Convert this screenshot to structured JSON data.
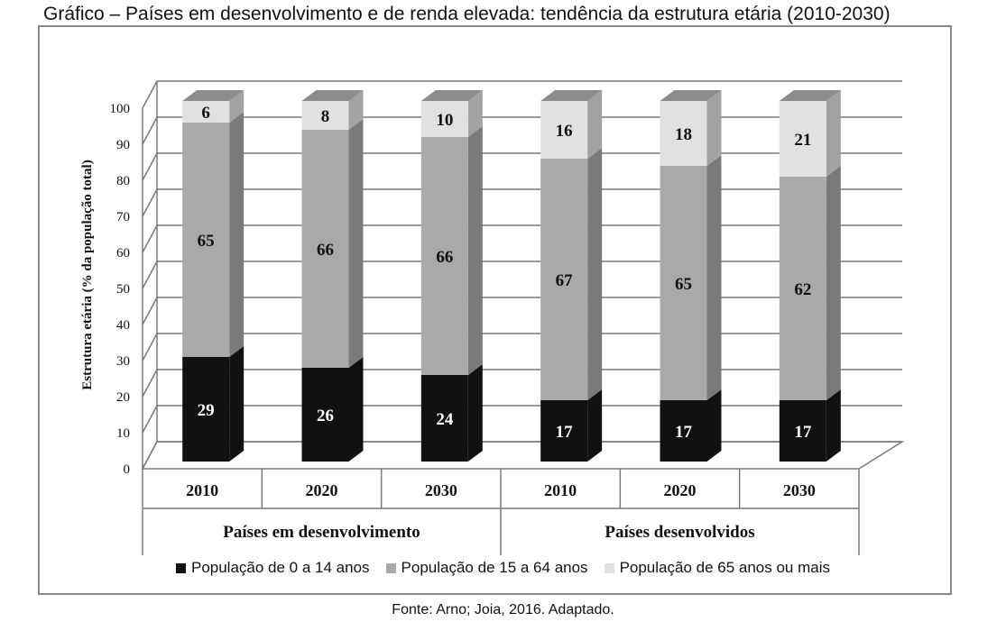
{
  "title": "Gráfico – Países em desenvolvimento e de renda elevada: tendência da estrutura etária (2010-2030)",
  "source": "Fonte: Arno; Joia, 2016. Adaptado.",
  "chart_data": {
    "type": "bar",
    "stacked": true,
    "three_d": true,
    "ylabel": "Estrutura etária (% da população total)",
    "ylim": [
      0,
      100
    ],
    "yticks": [
      0,
      10,
      20,
      30,
      40,
      50,
      60,
      70,
      80,
      90,
      100
    ],
    "grid": true,
    "legend_position": "bottom",
    "categories": [
      "2010",
      "2020",
      "2030",
      "2010",
      "2020",
      "2030"
    ],
    "groups": [
      {
        "label": "Países em desenvolvimento",
        "categories": [
          0,
          1,
          2
        ]
      },
      {
        "label": "Países desenvolvidos",
        "categories": [
          3,
          4,
          5
        ]
      }
    ],
    "series": [
      {
        "name": "População de 0 a 14 anos",
        "color": "#111111",
        "label_color": "#ffffff",
        "values": [
          29,
          26,
          24,
          17,
          17,
          17
        ]
      },
      {
        "name": "População de 15 a 64 anos",
        "color": "#a9a9a9",
        "label_color": "#111111",
        "values": [
          65,
          66,
          66,
          67,
          65,
          62
        ]
      },
      {
        "name": "População de 65 anos ou mais",
        "color": "#e1e1e1",
        "label_color": "#111111",
        "values": [
          6,
          8,
          10,
          16,
          18,
          21
        ]
      }
    ]
  }
}
